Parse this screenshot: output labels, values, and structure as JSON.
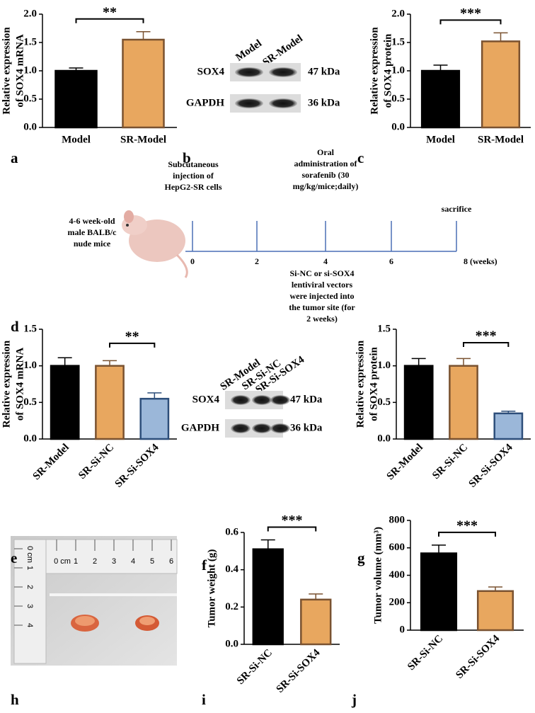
{
  "panels": [
    "a",
    "b",
    "c",
    "d",
    "e",
    "f",
    "g",
    "h",
    "i",
    "j"
  ],
  "chart_data": [
    {
      "type": "bar",
      "ylabel": [
        "Relative expression",
        "of SOX4 mRNA"
      ],
      "categories": [
        "Model",
        "SR-Model"
      ],
      "values": [
        1.0,
        1.55
      ],
      "errors": [
        0.05,
        0.14
      ],
      "colors": [
        "#000000",
        "#e8a75f"
      ],
      "edge_colors": [
        "#000000",
        "#7a5230"
      ],
      "ylim": [
        0,
        2
      ],
      "yticks": [
        {
          "value": 0,
          "label": "0.0"
        },
        {
          "value": 0.5,
          "label": "0.5"
        },
        {
          "value": 1,
          "label": "1.0"
        },
        {
          "value": 1.5,
          "label": "1.5"
        },
        {
          "value": 2,
          "label": "2.0"
        }
      ],
      "rotate_labels": false,
      "significance": {
        "label": "**",
        "between": [
          0,
          1
        ]
      }
    },
    {
      "type": "bar",
      "ylabel": [
        "Relative expression",
        "of SOX4 protein"
      ],
      "categories": [
        "Model",
        "SR-Model"
      ],
      "values": [
        1.0,
        1.52
      ],
      "errors": [
        0.1,
        0.15
      ],
      "colors": [
        "#000000",
        "#e8a75f"
      ],
      "edge_colors": [
        "#000000",
        "#7a5230"
      ],
      "ylim": [
        0,
        2
      ],
      "yticks": [
        {
          "value": 0,
          "label": "0.0"
        },
        {
          "value": 0.5,
          "label": "0.5"
        },
        {
          "value": 1,
          "label": "1.0"
        },
        {
          "value": 1.5,
          "label": "1.5"
        },
        {
          "value": 2,
          "label": "2.0"
        }
      ],
      "rotate_labels": false,
      "significance": {
        "label": "***",
        "between": [
          0,
          1
        ]
      }
    },
    {
      "type": "bar",
      "ylabel": [
        "Relative expression",
        "of SOX4 mRNA"
      ],
      "categories": [
        "SR-Model",
        "SR-Si-NC",
        "SR-Si-SOX4"
      ],
      "values": [
        1.0,
        1.0,
        0.55
      ],
      "errors": [
        0.11,
        0.07,
        0.08
      ],
      "colors": [
        "#000000",
        "#e8a75f",
        "#9bb7d9"
      ],
      "edge_colors": [
        "#000000",
        "#7a5230",
        "#2d4e7a"
      ],
      "ylim": [
        0,
        1.5
      ],
      "yticks": [
        {
          "value": 0,
          "label": "0.0"
        },
        {
          "value": 0.5,
          "label": "0.5"
        },
        {
          "value": 1,
          "label": "1.0"
        },
        {
          "value": 1.5,
          "label": "1.5"
        }
      ],
      "rotate_labels": true,
      "significance": {
        "label": "**",
        "between": [
          1,
          2
        ]
      }
    },
    {
      "type": "bar",
      "ylabel": [
        "Relative expression",
        "of SOX4 protein"
      ],
      "categories": [
        "SR-Model",
        "SR-Si-NC",
        "SR-Si-SOX4"
      ],
      "values": [
        1.0,
        1.0,
        0.35
      ],
      "errors": [
        0.1,
        0.1,
        0.03
      ],
      "colors": [
        "#000000",
        "#e8a75f",
        "#9bb7d9"
      ],
      "edge_colors": [
        "#000000",
        "#7a5230",
        "#2d4e7a"
      ],
      "ylim": [
        0,
        1.5
      ],
      "yticks": [
        {
          "value": 0,
          "label": "0.0"
        },
        {
          "value": 0.5,
          "label": "0.5"
        },
        {
          "value": 1,
          "label": "1.0"
        },
        {
          "value": 1.5,
          "label": "1.5"
        }
      ],
      "rotate_labels": true,
      "significance": {
        "label": "***",
        "between": [
          1,
          2
        ]
      }
    },
    {
      "type": "bar",
      "ylabel": [
        "Tumor weight (g)"
      ],
      "categories": [
        "SR-Si-NC",
        "SR-Si-SOX4"
      ],
      "values": [
        0.51,
        0.24
      ],
      "errors": [
        0.05,
        0.03
      ],
      "colors": [
        "#000000",
        "#e8a75f"
      ],
      "edge_colors": [
        "#000000",
        "#7a5230"
      ],
      "ylim": [
        0,
        0.6
      ],
      "yticks": [
        {
          "value": 0,
          "label": "0.0"
        },
        {
          "value": 0.2,
          "label": "0.2"
        },
        {
          "value": 0.4,
          "label": "0.4"
        },
        {
          "value": 0.6,
          "label": "0.6"
        }
      ],
      "rotate_labels": true,
      "significance": {
        "label": "***",
        "between": [
          0,
          1
        ]
      }
    },
    {
      "type": "bar",
      "ylabel": [
        "Tumor volume (mm³)"
      ],
      "categories": [
        "SR-Si-NC",
        "SR-Si-SOX4"
      ],
      "values": [
        560,
        285
      ],
      "errors": [
        60,
        30
      ],
      "colors": [
        "#000000",
        "#e8a75f"
      ],
      "edge_colors": [
        "#000000",
        "#7a5230"
      ],
      "ylim": [
        0,
        800
      ],
      "yticks": [
        0,
        200,
        400,
        600,
        800
      ],
      "rotate_labels": true,
      "significance": {
        "label": "***",
        "between": [
          0,
          1
        ]
      }
    }
  ],
  "blots": [
    {
      "lanes": [
        "Model",
        "SR-Model"
      ],
      "rows": [
        {
          "label": "SOX4",
          "size": "47 kDa"
        },
        {
          "label": "GAPDH",
          "size": "36 kDa"
        }
      ]
    },
    {
      "lanes": [
        "SR-Model",
        "SR-Si-NC",
        "SR-Si-SOX4"
      ],
      "rows": [
        {
          "label": "SOX4",
          "size": "47 kDa"
        },
        {
          "label": "GAPDH",
          "size": "36 kDa"
        }
      ]
    }
  ],
  "timeline": {
    "subject": [
      "4-6 week-old",
      "male BALB/c",
      "nude mice"
    ],
    "ticks": [
      "0",
      "2",
      "4",
      "6",
      "8 (weeks)"
    ],
    "above": [
      [
        "Subcutaneous",
        "injection of",
        "HepG2-SR cells"
      ],
      [
        "Oral",
        "administration of",
        "sorafenib (30",
        "mg/kg/mice;daily)"
      ],
      [
        "sacrifice"
      ]
    ],
    "below": [
      "Si-NC or si-SOX4",
      "lentiviral vectors",
      "were injected into",
      "the tumor site (for",
      "2 weeks)"
    ]
  },
  "photo": {
    "ruler_top": [
      "0 cm",
      "1",
      "2",
      "3",
      "4",
      "5",
      "6"
    ],
    "ruler_left": [
      "0 cm",
      "1",
      "2",
      "3",
      "4"
    ]
  }
}
